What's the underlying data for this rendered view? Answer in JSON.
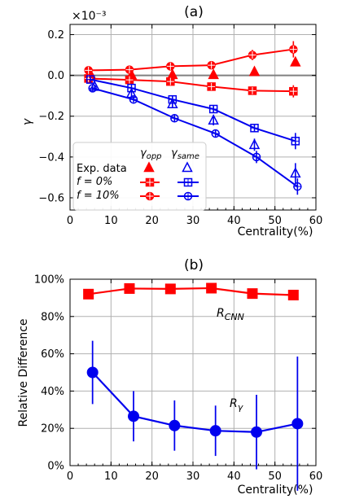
{
  "colors": {
    "red": "#ff0000",
    "blue": "#0000ee",
    "grid": "#b0b0b0",
    "zero": "#808080"
  },
  "chart_data": [
    {
      "type": "line",
      "title": "(a)",
      "scale_label": "×10⁻³",
      "ylabel": "γ",
      "xlabel": "Centrality(%)",
      "xlim": [
        0,
        60
      ],
      "ylim": [
        -0.66,
        0.25
      ],
      "xticks": [
        "0",
        "10",
        "20",
        "30",
        "40",
        "50",
        "60"
      ],
      "yticks": [
        "0.2",
        "0.0",
        "−0.2",
        "−0.4",
        "−0.6"
      ],
      "ytick_values": [
        0.2,
        0.0,
        -0.2,
        -0.4,
        -0.6
      ],
      "grid": true,
      "legend": {
        "header": "Exp. data",
        "rows": [
          "f = 0%",
          "f = 10%"
        ],
        "columns": [
          "γopp",
          "γsame"
        ],
        "placement": "bottom-left"
      },
      "series": [
        {
          "color": "red",
          "marker": "triangle",
          "filled": true,
          "x": [
            5,
            15,
            25,
            35,
            45,
            55
          ],
          "y": [
            0.005,
            0.002,
            0.003,
            0.003,
            0.018,
            0.065
          ],
          "err": [
            0,
            0,
            0,
            0,
            0,
            0
          ]
        },
        {
          "color": "red",
          "marker": "plus-square",
          "filled": true,
          "x": [
            4.5,
            14.5,
            24.5,
            34.5,
            44.5,
            54.5
          ],
          "y": [
            -0.015,
            -0.022,
            -0.03,
            -0.055,
            -0.075,
            -0.078
          ],
          "err": [
            0.01,
            0.01,
            0.012,
            0.015,
            0.02,
            0.03
          ]
        },
        {
          "color": "red",
          "marker": "circle-plus",
          "filled": true,
          "x": [
            4.5,
            14.5,
            24.5,
            34.5,
            44.5,
            54.5
          ],
          "y": [
            0.025,
            0.028,
            0.045,
            0.05,
            0.1,
            0.128
          ],
          "err": [
            0.01,
            0.01,
            0.012,
            0.015,
            0.025,
            0.04
          ]
        },
        {
          "color": "blue",
          "marker": "triangle",
          "filled": false,
          "x": [
            6,
            15,
            25,
            35,
            45,
            55
          ],
          "y": [
            -0.055,
            -0.09,
            -0.14,
            -0.22,
            -0.34,
            -0.48
          ],
          "err": [
            0.01,
            0.015,
            0.02,
            0.025,
            0.03,
            0.05
          ]
        },
        {
          "color": "blue",
          "marker": "plus-square",
          "filled": false,
          "x": [
            5,
            15,
            25,
            35,
            45,
            55
          ],
          "y": [
            -0.02,
            -0.062,
            -0.118,
            -0.165,
            -0.258,
            -0.322
          ],
          "err": [
            0.01,
            0.012,
            0.015,
            0.015,
            0.02,
            0.04
          ]
        },
        {
          "color": "blue",
          "marker": "circle-plus",
          "filled": false,
          "x": [
            5.5,
            15.5,
            25.5,
            35.5,
            45.5,
            55.5
          ],
          "y": [
            -0.063,
            -0.118,
            -0.21,
            -0.285,
            -0.4,
            -0.545
          ],
          "err": [
            0.01,
            0.012,
            0.015,
            0.02,
            0.03,
            0.04
          ]
        }
      ]
    },
    {
      "type": "line",
      "title": "(b)",
      "ylabel": "Relative Difference",
      "xlabel": "Centrality(%)",
      "xlim": [
        0,
        60
      ],
      "ylim": [
        0,
        100
      ],
      "xticks": [
        "0",
        "10",
        "20",
        "30",
        "40",
        "50",
        "60"
      ],
      "yticks": [
        "0%",
        "20%",
        "40%",
        "60%",
        "80%",
        "100%"
      ],
      "ytick_values": [
        0,
        20,
        40,
        60,
        80,
        100
      ],
      "grid": true,
      "annotations": {
        "rcnn": "RCNN",
        "rgamma": "Rγ"
      },
      "series": [
        {
          "color": "red",
          "marker": "square",
          "x": [
            4.5,
            14.5,
            24.5,
            34.5,
            44.5,
            54.5
          ],
          "y": [
            92,
            95,
            94.8,
            95.2,
            92.3,
            91.5
          ],
          "err": [
            0,
            0,
            0,
            0,
            0,
            0
          ]
        },
        {
          "color": "blue",
          "marker": "circle",
          "x": [
            5.5,
            15.5,
            25.5,
            35.5,
            45.5,
            55.5
          ],
          "y": [
            50,
            26.5,
            21.5,
            18.7,
            18,
            22.5
          ],
          "err": [
            17,
            13.5,
            13.5,
            13.5,
            20,
            36
          ]
        }
      ]
    }
  ]
}
